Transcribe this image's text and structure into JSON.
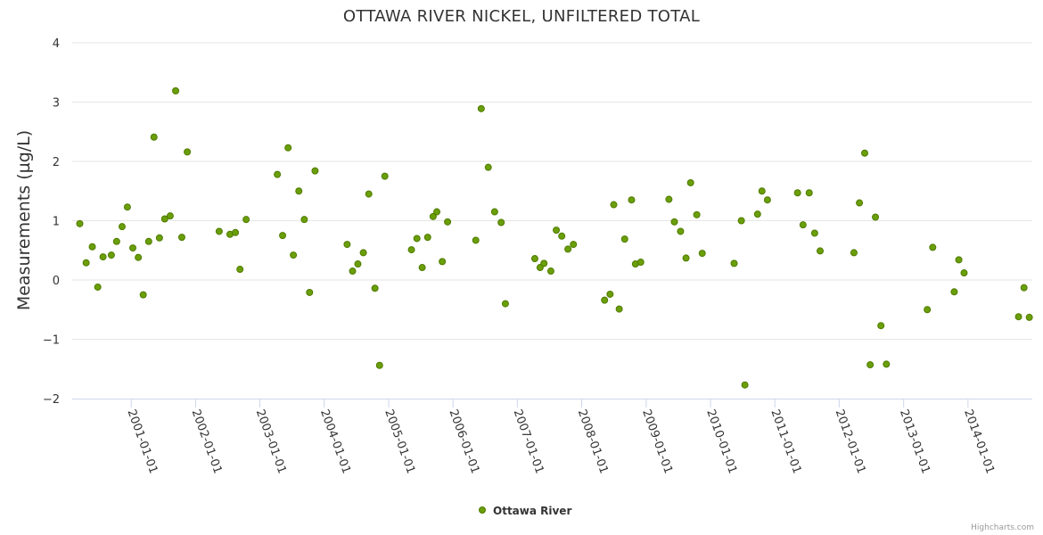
{
  "colors": {
    "point_fill": "#6a9f0a",
    "point_stroke": "#4f7a00",
    "grid": "#e6e6e6",
    "axis": "#ccd6eb"
  },
  "chart_data": {
    "type": "scatter",
    "title": "OTTAWA RIVER NICKEL, UNFILTERED TOTAL",
    "xlabel": "",
    "ylabel": "Measurements (µg/L)",
    "ylim": [
      -2,
      4
    ],
    "y_ticks": [
      -2,
      -1,
      0,
      1,
      2,
      3,
      4
    ],
    "y_tick_labels": [
      "−2",
      "−1",
      "0",
      "1",
      "2",
      "3",
      "4"
    ],
    "x_tick_labels": [
      "2001-01-01",
      "2002-01-01",
      "2003-01-01",
      "2004-01-01",
      "2005-01-01",
      "2006-01-01",
      "2007-01-01",
      "2008-01-01",
      "2009-01-01",
      "2010-01-01",
      "2011-01-01",
      "2012-01-01",
      "2013-01-01",
      "2014-01-01"
    ],
    "xlim": [
      "2000-02-01",
      "2015-01-01"
    ],
    "legend": "bottom-center",
    "credits": "Highcharts.com",
    "series": [
      {
        "name": "Ottawa River",
        "points": [
          [
            "2000-03-15",
            0.95
          ],
          [
            "2000-04-20",
            0.29
          ],
          [
            "2000-05-25",
            0.56
          ],
          [
            "2000-06-25",
            -0.12
          ],
          [
            "2000-07-25",
            0.39
          ],
          [
            "2000-09-10",
            0.42
          ],
          [
            "2000-10-10",
            0.65
          ],
          [
            "2000-11-10",
            0.9
          ],
          [
            "2000-12-10",
            1.23
          ],
          [
            "2001-01-10",
            0.54
          ],
          [
            "2001-02-10",
            0.38
          ],
          [
            "2001-03-10",
            -0.25
          ],
          [
            "2001-04-10",
            0.65
          ],
          [
            "2001-05-10",
            2.41
          ],
          [
            "2001-06-10",
            0.71
          ],
          [
            "2001-07-10",
            1.03
          ],
          [
            "2001-08-10",
            1.08
          ],
          [
            "2001-09-10",
            3.19
          ],
          [
            "2001-10-15",
            0.72
          ],
          [
            "2001-11-15",
            2.16
          ],
          [
            "2002-05-15",
            0.82
          ],
          [
            "2002-07-15",
            0.77
          ],
          [
            "2002-08-15",
            0.8
          ],
          [
            "2002-09-10",
            0.18
          ],
          [
            "2002-10-15",
            1.02
          ],
          [
            "2003-04-10",
            1.78
          ],
          [
            "2003-05-10",
            0.75
          ],
          [
            "2003-06-10",
            2.23
          ],
          [
            "2003-07-10",
            0.42
          ],
          [
            "2003-08-10",
            1.5
          ],
          [
            "2003-09-10",
            1.02
          ],
          [
            "2003-10-10",
            -0.21
          ],
          [
            "2003-11-10",
            1.84
          ],
          [
            "2004-05-10",
            0.6
          ],
          [
            "2004-06-10",
            0.15
          ],
          [
            "2004-07-10",
            0.27
          ],
          [
            "2004-08-10",
            0.46
          ],
          [
            "2004-09-10",
            1.45
          ],
          [
            "2004-10-15",
            -0.14
          ],
          [
            "2004-11-10",
            -1.44
          ],
          [
            "2004-12-10",
            1.75
          ],
          [
            "2005-05-10",
            0.51
          ],
          [
            "2005-06-10",
            0.7
          ],
          [
            "2005-07-10",
            0.21
          ],
          [
            "2005-08-10",
            0.72
          ],
          [
            "2005-09-10",
            1.07
          ],
          [
            "2005-10-01",
            1.15
          ],
          [
            "2005-11-01",
            0.31
          ],
          [
            "2005-12-01",
            0.98
          ],
          [
            "2006-05-10",
            0.67
          ],
          [
            "2006-06-10",
            2.89
          ],
          [
            "2006-07-20",
            1.9
          ],
          [
            "2006-08-25",
            1.15
          ],
          [
            "2006-10-01",
            0.97
          ],
          [
            "2006-10-25",
            -0.4
          ],
          [
            "2007-04-10",
            0.36
          ],
          [
            "2007-05-10",
            0.21
          ],
          [
            "2007-06-01",
            0.28
          ],
          [
            "2007-07-10",
            0.15
          ],
          [
            "2007-08-10",
            0.84
          ],
          [
            "2007-09-10",
            0.74
          ],
          [
            "2007-10-15",
            0.52
          ],
          [
            "2007-11-15",
            0.6
          ],
          [
            "2008-05-10",
            -0.34
          ],
          [
            "2008-06-10",
            -0.24
          ],
          [
            "2008-07-01",
            1.27
          ],
          [
            "2008-08-01",
            -0.49
          ],
          [
            "2008-09-01",
            0.69
          ],
          [
            "2008-10-10",
            1.35
          ],
          [
            "2008-11-01",
            0.27
          ],
          [
            "2008-12-01",
            0.3
          ],
          [
            "2009-05-10",
            1.36
          ],
          [
            "2009-06-10",
            0.98
          ],
          [
            "2009-07-15",
            0.82
          ],
          [
            "2009-08-15",
            0.37
          ],
          [
            "2009-09-10",
            1.64
          ],
          [
            "2009-10-15",
            1.1
          ],
          [
            "2009-11-15",
            0.45
          ],
          [
            "2010-05-15",
            0.28
          ],
          [
            "2010-06-25",
            1.0
          ],
          [
            "2010-07-15",
            -1.77
          ],
          [
            "2010-09-25",
            1.11
          ],
          [
            "2010-10-20",
            1.5
          ],
          [
            "2010-11-20",
            1.35
          ],
          [
            "2011-05-10",
            1.47
          ],
          [
            "2011-06-10",
            0.93
          ],
          [
            "2011-07-15",
            1.47
          ],
          [
            "2011-08-15",
            0.79
          ],
          [
            "2011-09-15",
            0.49
          ],
          [
            "2012-03-25",
            0.46
          ],
          [
            "2012-04-25",
            1.3
          ],
          [
            "2012-05-25",
            2.14
          ],
          [
            "2012-06-25",
            -1.43
          ],
          [
            "2012-07-25",
            1.06
          ],
          [
            "2012-08-25",
            -0.77
          ],
          [
            "2012-09-25",
            -1.42
          ],
          [
            "2013-05-15",
            -0.5
          ],
          [
            "2013-06-15",
            0.55
          ],
          [
            "2013-10-15",
            -0.2
          ],
          [
            "2013-11-10",
            0.34
          ],
          [
            "2013-12-10",
            0.12
          ],
          [
            "2014-10-15",
            -0.62
          ],
          [
            "2014-11-15",
            -0.13
          ],
          [
            "2014-12-15",
            -0.63
          ]
        ]
      }
    ]
  }
}
